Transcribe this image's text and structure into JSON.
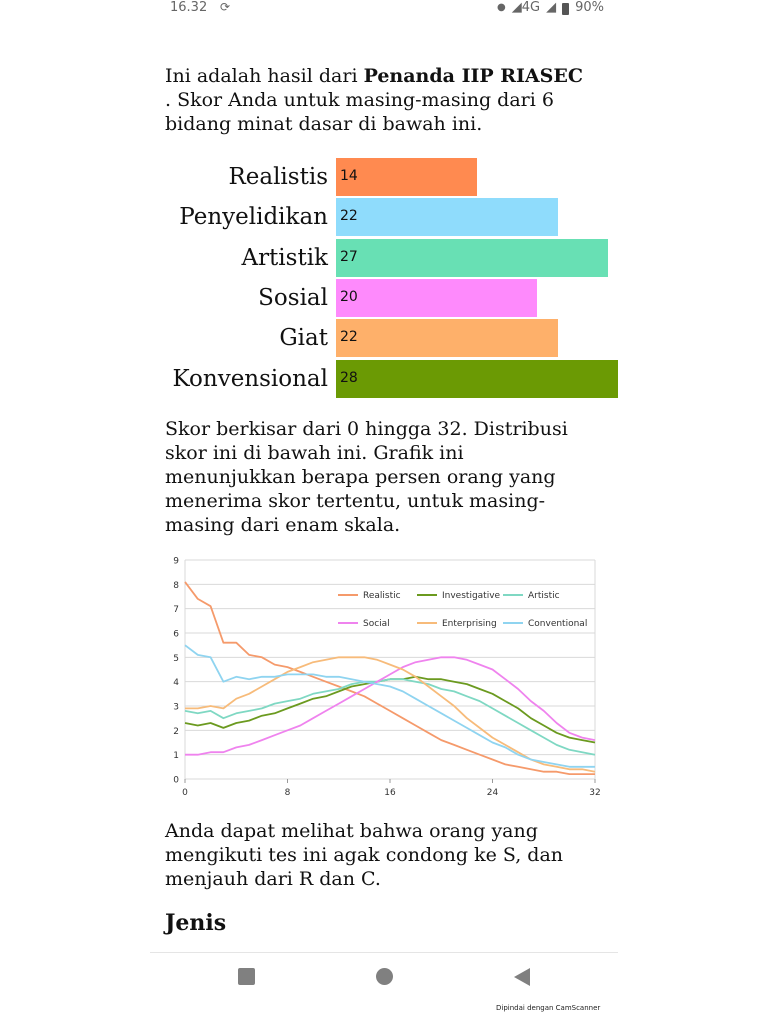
{
  "status_bar": {
    "time": "16.32",
    "network": "4G",
    "battery": "90%",
    "icons": [
      "sync-icon",
      "dot-icon",
      "signal-icon",
      "battery-icon"
    ]
  },
  "intro": {
    "prefix": "Ini adalah hasil dari ",
    "bold": "Penanda IIP RIASEC",
    "suffix": " . Skor Anda untuk masing-masing dari 6 bidang minat dasar di bawah ini."
  },
  "scores": [
    {
      "label": "Realistis",
      "value": 14,
      "color": "#ff8a50"
    },
    {
      "label": "Penyelidikan",
      "value": 22,
      "color": "#8fdcfc"
    },
    {
      "label": "Artistik",
      "value": 27,
      "color": "#68e0b4"
    },
    {
      "label": "Sosial",
      "value": 20,
      "color": "#fe8afc"
    },
    {
      "label": "Giat",
      "value": 22,
      "color": "#feb06a"
    },
    {
      "label": "Konvensional",
      "value": 28,
      "color": "#6b9a04"
    }
  ],
  "paragraph2": "Skor berkisar dari 0 hingga 32. Distribusi skor ini di bawah ini. Grafik ini menunjukkan berapa persen orang yang menerima skor tertentu, untuk masing-masing dari enam skala.",
  "chart_data": {
    "type": "line",
    "title": "",
    "xlabel": "",
    "ylabel": "",
    "xlim": [
      0,
      32
    ],
    "ylim": [
      0,
      9
    ],
    "xticks": [
      0,
      8,
      16,
      24,
      32
    ],
    "yticks": [
      0,
      1,
      2,
      3,
      4,
      5,
      6,
      7,
      8,
      9
    ],
    "grid": true,
    "legend_position": "top-right",
    "x": [
      0,
      1,
      2,
      3,
      4,
      5,
      6,
      7,
      8,
      9,
      10,
      11,
      12,
      13,
      14,
      15,
      16,
      17,
      18,
      19,
      20,
      21,
      22,
      23,
      24,
      25,
      26,
      27,
      28,
      29,
      30,
      31,
      32
    ],
    "series": [
      {
        "name": "Realistic",
        "color": "#f59a6b",
        "values": [
          8.1,
          7.4,
          7.1,
          5.6,
          5.6,
          5.1,
          5.0,
          4.7,
          4.6,
          4.4,
          4.2,
          4.0,
          3.8,
          3.6,
          3.4,
          3.1,
          2.8,
          2.5,
          2.2,
          1.9,
          1.6,
          1.4,
          1.2,
          1.0,
          0.8,
          0.6,
          0.5,
          0.4,
          0.3,
          0.3,
          0.2,
          0.2,
          0.2
        ]
      },
      {
        "name": "Investigative",
        "color": "#6b9a1f",
        "values": [
          2.3,
          2.2,
          2.3,
          2.1,
          2.3,
          2.4,
          2.6,
          2.7,
          2.9,
          3.1,
          3.3,
          3.4,
          3.6,
          3.8,
          3.9,
          4.0,
          4.1,
          4.1,
          4.2,
          4.1,
          4.1,
          4.0,
          3.9,
          3.7,
          3.5,
          3.2,
          2.9,
          2.5,
          2.2,
          1.9,
          1.7,
          1.6,
          1.5
        ]
      },
      {
        "name": "Artistic",
        "color": "#7fd8c3",
        "values": [
          2.8,
          2.7,
          2.8,
          2.5,
          2.7,
          2.8,
          2.9,
          3.1,
          3.2,
          3.3,
          3.5,
          3.6,
          3.7,
          3.9,
          4.0,
          4.0,
          4.1,
          4.1,
          4.0,
          3.9,
          3.7,
          3.6,
          3.4,
          3.2,
          2.9,
          2.6,
          2.3,
          2.0,
          1.7,
          1.4,
          1.2,
          1.1,
          1.0
        ]
      },
      {
        "name": "Social",
        "color": "#ef83ee",
        "values": [
          1.0,
          1.0,
          1.1,
          1.1,
          1.3,
          1.4,
          1.6,
          1.8,
          2.0,
          2.2,
          2.5,
          2.8,
          3.1,
          3.4,
          3.7,
          4.0,
          4.3,
          4.6,
          4.8,
          4.9,
          5.0,
          5.0,
          4.9,
          4.7,
          4.5,
          4.1,
          3.7,
          3.2,
          2.8,
          2.3,
          1.9,
          1.7,
          1.6
        ]
      },
      {
        "name": "Enterprising",
        "color": "#f7bb7a",
        "values": [
          2.9,
          2.9,
          3.0,
          2.9,
          3.3,
          3.5,
          3.8,
          4.1,
          4.4,
          4.6,
          4.8,
          4.9,
          5.0,
          5.0,
          5.0,
          4.9,
          4.7,
          4.5,
          4.2,
          3.8,
          3.4,
          3.0,
          2.5,
          2.1,
          1.7,
          1.4,
          1.1,
          0.8,
          0.6,
          0.5,
          0.4,
          0.4,
          0.3
        ]
      },
      {
        "name": "Conventional",
        "color": "#8fd4f0",
        "values": [
          5.5,
          5.1,
          5.0,
          4.0,
          4.2,
          4.1,
          4.2,
          4.2,
          4.3,
          4.3,
          4.3,
          4.2,
          4.2,
          4.1,
          4.0,
          3.9,
          3.8,
          3.6,
          3.3,
          3.0,
          2.7,
          2.4,
          2.1,
          1.8,
          1.5,
          1.3,
          1.0,
          0.8,
          0.7,
          0.6,
          0.5,
          0.5,
          0.5
        ]
      }
    ]
  },
  "paragraph3": "Anda dapat melihat bahwa orang yang mengikuti tes ini agak condong ke S, dan menjauh dari R dan C.",
  "section_heading": "Jenis",
  "nav": {
    "icons": [
      "recent-apps-icon",
      "home-icon",
      "back-icon"
    ]
  },
  "watermark": "Dipindai dengan CamScanner"
}
